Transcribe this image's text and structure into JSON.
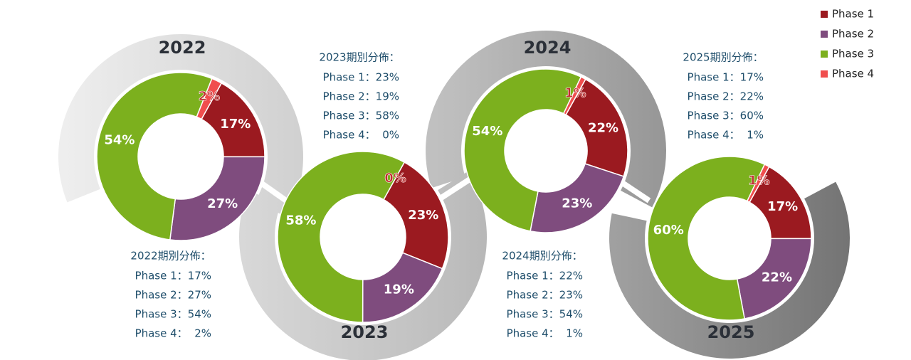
{
  "chart_data": [
    {
      "type": "donut",
      "title": "2022",
      "categories": [
        "Phase 1",
        "Phase 2",
        "Phase 3",
        "Phase 4"
      ],
      "colors": [
        "#9b1a20",
        "#7f4c7e",
        "#7cb01e",
        "#f04e4e"
      ],
      "values": [
        17,
        27,
        54,
        2
      ],
      "value_labels": [
        "17%",
        "27%",
        "54%",
        "2%"
      ],
      "breakdown_title": "2022期別分佈：",
      "breakdown_lines": [
        "Phase 1：17%",
        "Phase 2：27%",
        "Phase 3：54%",
        "Phase 4：  2%"
      ]
    },
    {
      "type": "donut",
      "title": "2023",
      "categories": [
        "Phase 1",
        "Phase 2",
        "Phase 3",
        "Phase 4"
      ],
      "colors": [
        "#9b1a20",
        "#7f4c7e",
        "#7cb01e",
        "#f04e4e"
      ],
      "values": [
        23,
        19,
        58,
        0
      ],
      "value_labels": [
        "23%",
        "19%",
        "58%",
        "0%"
      ],
      "breakdown_title": "2023期別分佈：",
      "breakdown_lines": [
        "Phase 1：23%",
        "Phase 2：19%",
        "Phase 3：58%",
        "Phase 4：  0%"
      ]
    },
    {
      "type": "donut",
      "title": "2024",
      "categories": [
        "Phase 1",
        "Phase 2",
        "Phase 3",
        "Phase 4"
      ],
      "colors": [
        "#9b1a20",
        "#7f4c7e",
        "#7cb01e",
        "#f04e4e"
      ],
      "values": [
        22,
        23,
        54,
        1
      ],
      "value_labels": [
        "22%",
        "23%",
        "54%",
        "1%"
      ],
      "breakdown_title": "2024期別分佈：",
      "breakdown_lines": [
        "Phase 1：22%",
        "Phase 2：23%",
        "Phase 3：54%",
        "Phase 4：  1%"
      ]
    },
    {
      "type": "donut",
      "title": "2025",
      "categories": [
        "Phase 1",
        "Phase 2",
        "Phase 3",
        "Phase 4"
      ],
      "colors": [
        "#9b1a20",
        "#7f4c7e",
        "#7cb01e",
        "#f04e4e"
      ],
      "values": [
        17,
        22,
        60,
        1
      ],
      "value_labels": [
        "17%",
        "22%",
        "60%",
        "1%"
      ],
      "breakdown_title": "2025期別分佈：",
      "breakdown_lines": [
        "Phase 1：17%",
        "Phase 2：22%",
        "Phase 3：60%",
        "Phase 4：  1%"
      ]
    }
  ]
}
